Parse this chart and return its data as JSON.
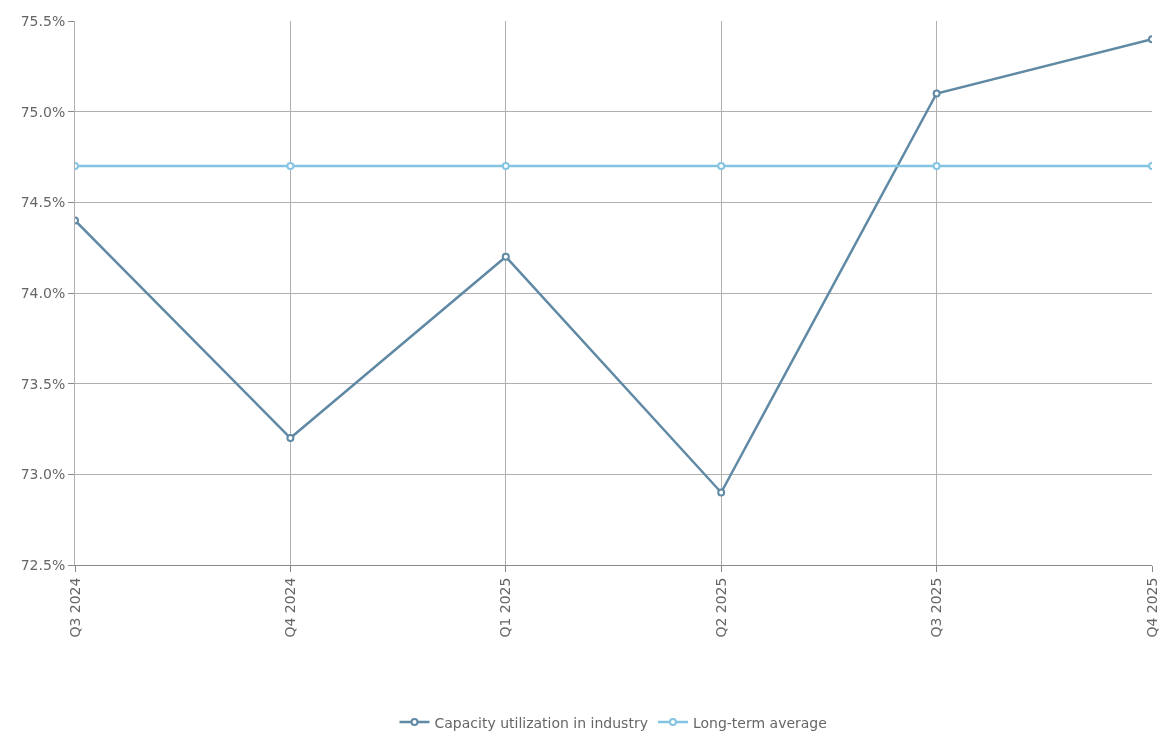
{
  "chart_data": {
    "type": "line",
    "categories": [
      "Q3 2024",
      "Q4 2024",
      "Q1 2025",
      "Q2 2025",
      "Q3 2025",
      "Q4 2025"
    ],
    "series": [
      {
        "name": "Capacity utilization in industry",
        "color": "#5f89a4",
        "values": [
          74.4,
          73.2,
          74.2,
          72.9,
          75.1,
          75.4
        ]
      },
      {
        "name": "Long-term average",
        "color": "#85c3e3",
        "values": [
          74.7,
          74.7,
          74.7,
          74.7,
          74.7,
          74.7
        ]
      }
    ],
    "ylim": [
      72.5,
      75.5
    ],
    "yticks": [
      {
        "value": 72.5,
        "label": "72.5%"
      },
      {
        "value": 73.0,
        "label": "73.0%"
      },
      {
        "value": 73.5,
        "label": "73.5%"
      },
      {
        "value": 74.0,
        "label": "74.0%"
      },
      {
        "value": 74.5,
        "label": "74.5%"
      },
      {
        "value": 75.0,
        "label": "75.0%"
      },
      {
        "value": 75.5,
        "label": "75.5%"
      }
    ],
    "grid": true,
    "legend": "bottom",
    "marker": "circle",
    "line_style": "solid"
  }
}
